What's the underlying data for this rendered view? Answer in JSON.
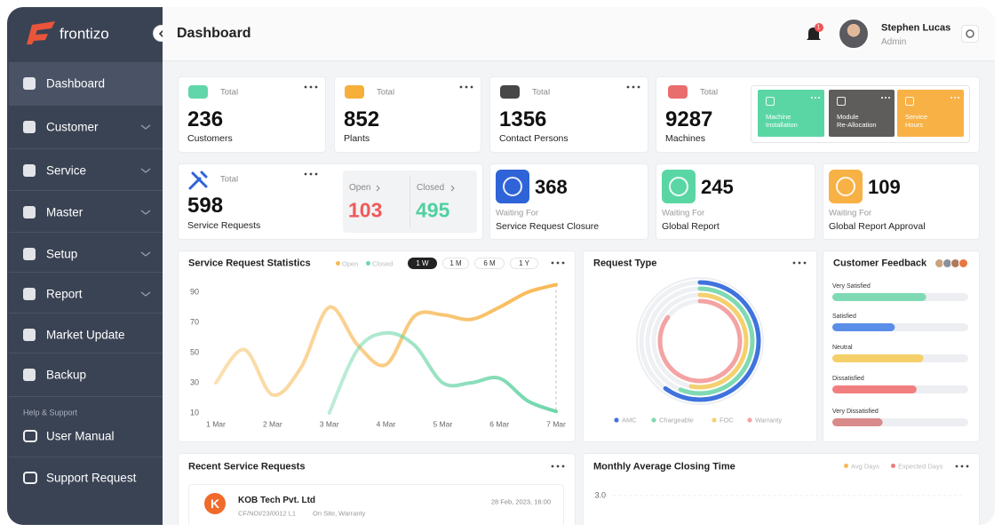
{
  "brand": "frontizo",
  "sidebar": {
    "items": [
      "Dashboard",
      "Customer",
      "Service",
      "Master",
      "Setup",
      "Report",
      "Market Update",
      "Backup"
    ],
    "help_title": "Help & Support",
    "help_items": [
      "User Manual",
      "Support Request"
    ]
  },
  "header": {
    "title": "Dashboard",
    "notifications": 1,
    "user_name": "Stephen Lucas",
    "user_role": "Admin"
  },
  "stats": [
    {
      "label": "Total",
      "value": 236,
      "caption": "Customers"
    },
    {
      "label": "Total",
      "value": 852,
      "caption": "Plants"
    },
    {
      "label": "Total",
      "value": 1356,
      "caption": "Contact Persons"
    },
    {
      "label": "Total",
      "value": 9287,
      "caption": "Machines"
    }
  ],
  "quick_actions": [
    "Machine Installation",
    "Module Re-Allocation",
    "Service Hours"
  ],
  "service_requests": {
    "label": "Total",
    "value": 598,
    "caption": "Service Requests",
    "open_label": "Open",
    "open": 103,
    "closed_label": "Closed",
    "closed": 495
  },
  "waiting": [
    {
      "value": 368,
      "label": "Waiting For",
      "caption": "Service Request Closure"
    },
    {
      "value": 245,
      "label": "Waiting For",
      "caption": "Global Report"
    },
    {
      "value": 109,
      "label": "Waiting For",
      "caption": "Global Report Approval"
    }
  ],
  "chart_data": [
    {
      "type": "line",
      "title": "Service Request Statistics",
      "categories": [
        "1 Mar",
        null,
        "2 Mar",
        null,
        "3 Mar",
        null,
        "4 Mar",
        null,
        "5 Mar",
        null,
        "6 Mar",
        null,
        "7 Mar"
      ],
      "series": [
        {
          "name": "Open",
          "color": "#f7b955",
          "values": [
            30,
            52,
            22,
            40,
            80,
            55,
            42,
            74,
            75,
            72,
            80,
            90,
            95
          ]
        },
        {
          "name": "Closed",
          "color": "#6fd6aa",
          "values": [
            null,
            null,
            null,
            null,
            10,
            52,
            63,
            55,
            30,
            30,
            33,
            18,
            11
          ]
        }
      ],
      "ylim": [
        10,
        100
      ],
      "yticks": [
        10,
        30,
        50,
        70,
        90
      ],
      "ranges": [
        "1 W",
        "1 M",
        "6 M",
        "1 Y"
      ],
      "active_range": "1 W"
    },
    {
      "type": "radial",
      "title": "Request Type",
      "categories": [
        "AMC",
        "Chargeable",
        "FOC",
        "Warranty"
      ],
      "values": [
        60,
        56,
        53,
        85
      ],
      "colors": [
        "#3f73dd",
        "#7fdab3",
        "#f5d06e",
        "#f4a3a3"
      ]
    },
    {
      "type": "bar",
      "orientation": "horizontal",
      "title": "Customer Feedback",
      "categories": [
        "Very Satisfied",
        "Satisfied",
        "Neutral",
        "Dissatisfied",
        "Very Dissatisfied"
      ],
      "values": [
        69,
        46,
        67,
        62,
        37
      ],
      "colors": [
        "#7fdab3",
        "#5b8ee8",
        "#f5cf6a",
        "#f27f7f",
        "#d98a8a"
      ],
      "xlim": [
        0,
        100
      ]
    },
    {
      "type": "line",
      "title": "Monthly Average Closing Time",
      "series": [
        {
          "name": "Avg Days",
          "color": "#f7b955"
        },
        {
          "name": "Expected Days",
          "color": "#f07a7a"
        }
      ],
      "ylim": [
        0,
        3.2
      ],
      "yticks": [
        {
          "value": 3,
          "label": "3.0"
        }
      ]
    }
  ],
  "recent": {
    "title": "Recent Service Requests",
    "items": [
      {
        "initial": "K",
        "company": "KOB Tech Pvt. Ltd",
        "code": "CF/NOI/23/0012 L1",
        "tags": "On Site, Warranty",
        "date": "28 Feb, 2023, 16:00"
      }
    ]
  }
}
